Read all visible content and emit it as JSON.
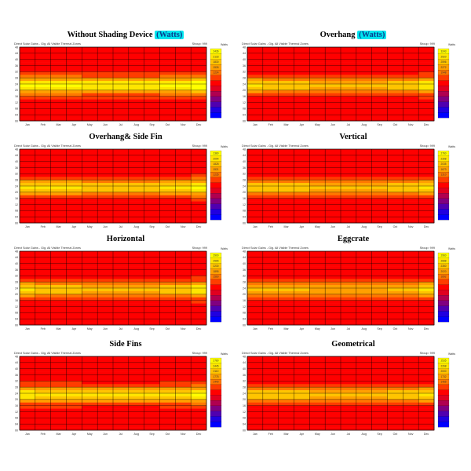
{
  "chart_data": [
    {
      "type": "heatmap",
      "title": "Without Shading Device",
      "title_unit": "(Watts)",
      "subtitle_left": "Direct Solar Gains - Gig. All Visible Thermal Zones",
      "subtitle_right": "Shoup: 999",
      "legend_title": "Watts",
      "legend_values": [
        "2436",
        "2133",
        "1830",
        "1526",
        "1224",
        "",
        "",
        "",
        "",
        "",
        "",
        ""
      ],
      "y_ticks": [
        "48",
        "44",
        "40",
        "36",
        "32",
        "28",
        "24",
        "20",
        "16",
        "12",
        "08",
        "04",
        "00"
      ],
      "x_ticks": [
        "Jan",
        "Feb",
        "Mar",
        "Apr",
        "May",
        "Jun",
        "Jul",
        "Aug",
        "Sep",
        "Oct",
        "Nov",
        "Dec"
      ],
      "rows": 24,
      "peak": 0.95
    },
    {
      "type": "heatmap",
      "title": "Overhang",
      "title_unit": "(Watts)",
      "subtitle_left": "Direct Solar Gains - Gig. All Visible Thermal Zones",
      "subtitle_right": "Shoup: 999",
      "legend_title": "Watts",
      "legend_values": [
        "3243",
        "2920",
        "2596",
        "2272",
        "1948",
        "",
        "",
        "",
        "",
        "",
        "",
        ""
      ],
      "y_ticks": [
        "48",
        "44",
        "40",
        "36",
        "32",
        "28",
        "24",
        "20",
        "16",
        "12",
        "08",
        "04",
        "00"
      ],
      "x_ticks": [
        "Jan",
        "Feb",
        "Mar",
        "Apr",
        "May",
        "Jun",
        "Jul",
        "Aug",
        "Sep",
        "Oct",
        "Nov",
        "Dec"
      ],
      "rows": 24,
      "peak": 0.75
    },
    {
      "type": "heatmap",
      "title": "Overhang& Side Fin",
      "title_unit": "",
      "subtitle_left": "Direct Solar Gains - Gig. All Visible Thermal Zones",
      "subtitle_right": "Shoup: 999",
      "legend_title": "Watts",
      "legend_values": [
        "2380",
        "2094",
        "1828",
        "1521",
        "1235",
        "",
        "",
        "",
        "",
        "",
        "",
        ""
      ],
      "y_ticks": [
        "48",
        "44",
        "40",
        "36",
        "32",
        "28",
        "24",
        "20",
        "16",
        "12",
        "08",
        "04",
        "00"
      ],
      "x_ticks": [
        "Jan",
        "Feb",
        "Mar",
        "Apr",
        "May",
        "Jun",
        "Jul",
        "Aug",
        "Sep",
        "Oct",
        "Nov",
        "Dec"
      ],
      "rows": 24,
      "peak": 0.8
    },
    {
      "type": "heatmap",
      "title": "Vertical",
      "title_unit": "",
      "subtitle_left": "Direct Solar Gains - Gig. All Visible Thermal Zones",
      "subtitle_right": "Shoup: 999",
      "legend_title": "Watts",
      "legend_values": [
        "2760",
        "2398",
        "2035",
        "1673",
        "1310",
        "",
        "",
        "",
        "",
        "",
        "",
        ""
      ],
      "y_ticks": [
        "48",
        "44",
        "40",
        "36",
        "32",
        "28",
        "24",
        "20",
        "16",
        "12",
        "08",
        "04",
        "00"
      ],
      "x_ticks": [
        "Jan",
        "Feb",
        "Mar",
        "Apr",
        "May",
        "Jun",
        "Jul",
        "Aug",
        "Sep",
        "Oct",
        "Nov",
        "Dec"
      ],
      "rows": 24,
      "peak": 0.7
    },
    {
      "type": "heatmap",
      "title": "Horizontal",
      "title_unit": "",
      "subtitle_left": "Direct Solar Gains - Gig. All Visible Thermal Zones",
      "subtitle_right": "Shoup: 999",
      "legend_title": "Watts",
      "legend_values": [
        "2900",
        "2565",
        "2230",
        "1895",
        "1560",
        "",
        "",
        "",
        "",
        "",
        "",
        ""
      ],
      "y_ticks": [
        "48",
        "44",
        "40",
        "36",
        "32",
        "28",
        "24",
        "20",
        "16",
        "12",
        "08",
        "04",
        "00"
      ],
      "x_ticks": [
        "Jan",
        "Feb",
        "Mar",
        "Apr",
        "May",
        "Jun",
        "Jul",
        "Aug",
        "Sep",
        "Oct",
        "Nov",
        "Dec"
      ],
      "rows": 24,
      "peak": 0.75
    },
    {
      "type": "heatmap",
      "title": "Eggcrate",
      "title_unit": "",
      "subtitle_left": "Direct Solar Gains - Gig. All Visible Thermal Zones",
      "subtitle_right": "Shoup: 999",
      "legend_title": "Watts",
      "legend_values": [
        "2960",
        "2688",
        "2350",
        "2020",
        "1692",
        "",
        "",
        "",
        "",
        "",
        "",
        ""
      ],
      "y_ticks": [
        "48",
        "44",
        "40",
        "36",
        "32",
        "28",
        "24",
        "20",
        "16",
        "12",
        "08",
        "04",
        "00"
      ],
      "x_ticks": [
        "Jan",
        "Feb",
        "Mar",
        "Apr",
        "May",
        "Jun",
        "Jul",
        "Aug",
        "Sep",
        "Oct",
        "Nov",
        "Dec"
      ],
      "rows": 24,
      "peak": 0.65
    },
    {
      "type": "heatmap",
      "title": "Side Fins",
      "title_unit": "",
      "subtitle_left": "Direct Solar Gains - Gig. All Visible Thermal Zones",
      "subtitle_right": "Shoup: 999",
      "legend_title": "Watts",
      "legend_values": [
        "2780",
        "2445",
        "2110",
        "1775",
        "1440",
        "",
        "",
        "",
        "",
        "",
        "",
        ""
      ],
      "y_ticks": [
        "48",
        "44",
        "40",
        "36",
        "32",
        "28",
        "24",
        "20",
        "16",
        "12",
        "08",
        "04",
        "00"
      ],
      "x_ticks": [
        "Jan",
        "Feb",
        "Mar",
        "Apr",
        "May",
        "Jun",
        "Jul",
        "Aug",
        "Sep",
        "Oct",
        "Nov",
        "Dec"
      ],
      "rows": 24,
      "peak": 0.85
    },
    {
      "type": "heatmap",
      "title": "Geometrical",
      "title_unit": "",
      "subtitle_left": "Direct Solar Gains - Gig. All Visible Thermal Zones",
      "subtitle_right": "Shoup: 999",
      "legend_title": "Watts",
      "legend_values": [
        "2535",
        "2268",
        "2000",
        "1732",
        "1465",
        "",
        "",
        "",
        "",
        "",
        "",
        ""
      ],
      "y_ticks": [
        "48",
        "44",
        "40",
        "36",
        "32",
        "28",
        "24",
        "20",
        "16",
        "12",
        "08",
        "04",
        "00"
      ],
      "x_ticks": [
        "Jan",
        "Feb",
        "Mar",
        "Apr",
        "May",
        "Jun",
        "Jul",
        "Aug",
        "Sep",
        "Oct",
        "Nov",
        "Dec"
      ],
      "rows": 24,
      "peak": 0.7
    }
  ],
  "colors": {
    "scale": [
      "#ffff00",
      "#ffe600",
      "#ffc400",
      "#ffa000",
      "#ff7800",
      "#ff3c00",
      "#ff0000",
      "#e00020",
      "#b00050",
      "#800080",
      "#5000b0",
      "#2000e0",
      "#0000ff"
    ],
    "highlight": "#00e5ee",
    "grid": "#000000"
  }
}
